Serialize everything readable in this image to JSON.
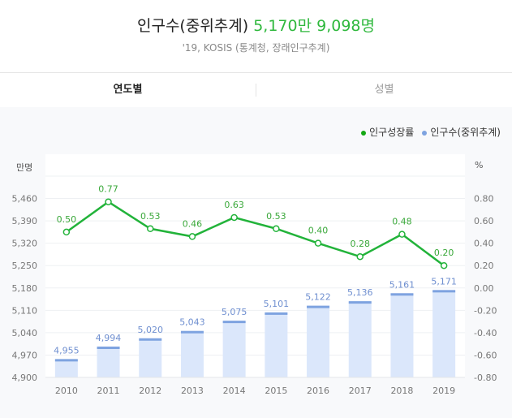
{
  "header": {
    "title": "인구수(중위추계)",
    "value": "5,170만 9,098명",
    "source": "'19, KOSIS (통계청, 장래인구추계)"
  },
  "tabs": [
    {
      "label": "연도별",
      "active": true
    },
    {
      "label": "성별",
      "active": false
    }
  ],
  "colors": {
    "line": "#22b33a",
    "bar": "#dbe7fb",
    "bar_top": "#7ea3e0",
    "label_bar": "#6f8fd0",
    "label_line": "#3aa83a"
  },
  "chart_data": {
    "type": "bar+line",
    "categories": [
      "2010",
      "2011",
      "2012",
      "2013",
      "2014",
      "2015",
      "2016",
      "2017",
      "2018",
      "2019"
    ],
    "series": [
      {
        "name": "인구수(중위추계)",
        "type": "bar",
        "axis": "left",
        "values": [
          4955,
          4994,
          5020,
          5043,
          5075,
          5101,
          5122,
          5136,
          5161,
          5171
        ],
        "labels": [
          "4,955",
          "4,994",
          "5,020",
          "5,043",
          "5,075",
          "5,101",
          "5,122",
          "5,136",
          "5,161",
          "5,171"
        ]
      },
      {
        "name": "인구성장률",
        "type": "line",
        "axis": "right",
        "values": [
          0.5,
          0.77,
          0.53,
          0.46,
          0.63,
          0.53,
          0.4,
          0.28,
          0.48,
          0.2
        ],
        "labels": [
          "0.50",
          "0.77",
          "0.53",
          "0.46",
          "0.63",
          "0.53",
          "0.40",
          "0.28",
          "0.48",
          "0.20"
        ]
      }
    ],
    "left_axis": {
      "label": "만명",
      "ylim": [
        4900,
        5530
      ],
      "ticks": [
        "4,900",
        "4,970",
        "5,040",
        "5,110",
        "5,180",
        "5,250",
        "5,320",
        "5,390",
        "5,460"
      ],
      "tick_values": [
        4900,
        4970,
        5040,
        5110,
        5180,
        5250,
        5320,
        5390,
        5460
      ]
    },
    "right_axis": {
      "label": "%",
      "ylim": [
        -0.8,
        1.0
      ],
      "ticks": [
        "-0.80",
        "-0.60",
        "-0.40",
        "-0.20",
        "0.00",
        "0.20",
        "0.40",
        "0.60",
        "0.80"
      ],
      "tick_values": [
        -0.8,
        -0.6,
        -0.4,
        -0.2,
        0,
        0.2,
        0.4,
        0.6,
        0.8
      ]
    },
    "legend": [
      "인구성장률",
      "인구수(중위추계)"
    ],
    "legend_position": "top-right",
    "grid": true
  }
}
